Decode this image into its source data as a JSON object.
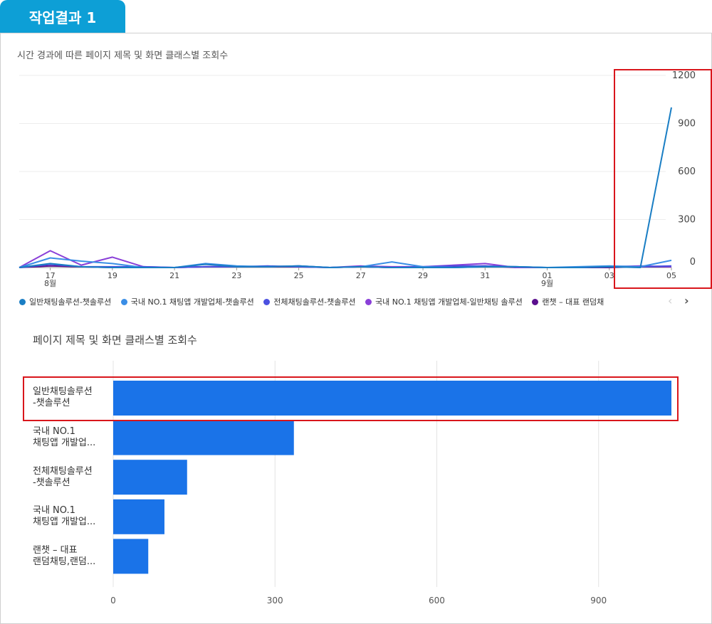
{
  "tab": {
    "label": "작업결과 1"
  },
  "line_title": "시간 경과에 따른 페이지 제목 및 화면 클래스별 조회수",
  "bar_title": "페이지 제목 및 화면 클래스별 조회수",
  "colors": {
    "tab": "#0d9fd6",
    "highlight": "#d9161c",
    "bar": "#1a73e8",
    "series": [
      "#1a7ec4",
      "#3a8ee6",
      "#4b50e0",
      "#8a3fd8",
      "#5b0f8e"
    ]
  },
  "legend": {
    "items": [
      "일반채팅솔루션-챗솔루션",
      "국내 NO.1 채팅앱 개발업체-챗솔루션",
      "전체채팅솔루션-챗솔루션",
      "국내 NO.1 채팅앱 개발업체-일반채팅 솔루션",
      "랜챗 – 대표 랜덤채"
    ],
    "prev_icon": "‹",
    "next_icon": "›"
  },
  "chart_data": [
    {
      "type": "line",
      "title": "시간 경과에 따른 페이지 제목 및 화면 클래스별 조회수",
      "x_tick_labels": [
        "17",
        "19",
        "21",
        "23",
        "25",
        "27",
        "29",
        "31",
        "01",
        "03",
        "05"
      ],
      "x_month_labels": [
        {
          "at": "17",
          "text": "8월"
        },
        {
          "at": "01",
          "text": "9월"
        }
      ],
      "x": [
        "08-16",
        "08-17",
        "08-18",
        "08-19",
        "08-20",
        "08-21",
        "08-22",
        "08-23",
        "08-24",
        "08-25",
        "08-26",
        "08-27",
        "08-28",
        "08-29",
        "08-30",
        "08-31",
        "09-01",
        "09-02",
        "09-03",
        "09-04",
        "09-05",
        "09-06"
      ],
      "y_ticks": [
        0,
        300,
        600,
        900,
        1200
      ],
      "ylim": [
        0,
        1200
      ],
      "y_axis_side": "right",
      "legend_position": "bottom",
      "grid": true,
      "series": [
        {
          "name": "일반채팅솔루션-챗솔루션",
          "values": [
            0,
            25,
            5,
            0,
            0,
            0,
            20,
            5,
            5,
            10,
            0,
            5,
            0,
            0,
            0,
            5,
            5,
            0,
            0,
            5,
            0,
            1000
          ]
        },
        {
          "name": "국내 NO.1 채팅앱 개발업체-챗솔루션",
          "values": [
            0,
            60,
            40,
            25,
            0,
            0,
            25,
            10,
            5,
            10,
            0,
            5,
            35,
            5,
            0,
            5,
            5,
            0,
            5,
            10,
            5,
            45
          ]
        },
        {
          "name": "전체채팅솔루션-챗솔루션",
          "values": [
            0,
            20,
            5,
            5,
            5,
            0,
            5,
            5,
            10,
            5,
            0,
            5,
            0,
            5,
            10,
            10,
            5,
            0,
            0,
            5,
            5,
            10
          ]
        },
        {
          "name": "국내 NO.1 채팅앱 개발업체-일반채팅 솔루션",
          "values": [
            0,
            105,
            15,
            65,
            5,
            0,
            5,
            5,
            5,
            10,
            0,
            10,
            5,
            5,
            15,
            25,
            0,
            0,
            0,
            5,
            10,
            5
          ]
        },
        {
          "name": "랜챗 – 대표 랜덤채팅,랜덤...",
          "values": [
            0,
            10,
            5,
            0,
            0,
            0,
            5,
            5,
            5,
            5,
            0,
            5,
            0,
            0,
            5,
            10,
            0,
            0,
            0,
            0,
            5,
            5
          ]
        }
      ]
    },
    {
      "type": "bar",
      "orientation": "horizontal",
      "title": "페이지 제목 및 화면 클래스별 조회수",
      "categories": [
        [
          "일반채팅솔루션",
          "-챗솔루션"
        ],
        [
          "국내 NO.1",
          "채팅앱 개발업..."
        ],
        [
          "전체채팅솔루션",
          "-챗솔루션"
        ],
        [
          "국내 NO.1",
          "채팅앱 개발업..."
        ],
        [
          "랜챗 – 대표",
          "랜덤채팅,랜덤..."
        ]
      ],
      "values": [
        1035,
        335,
        137,
        95,
        65
      ],
      "x_ticks": [
        0,
        300,
        600,
        900
      ],
      "xlim": [
        0,
        1035
      ],
      "grid": true
    }
  ]
}
